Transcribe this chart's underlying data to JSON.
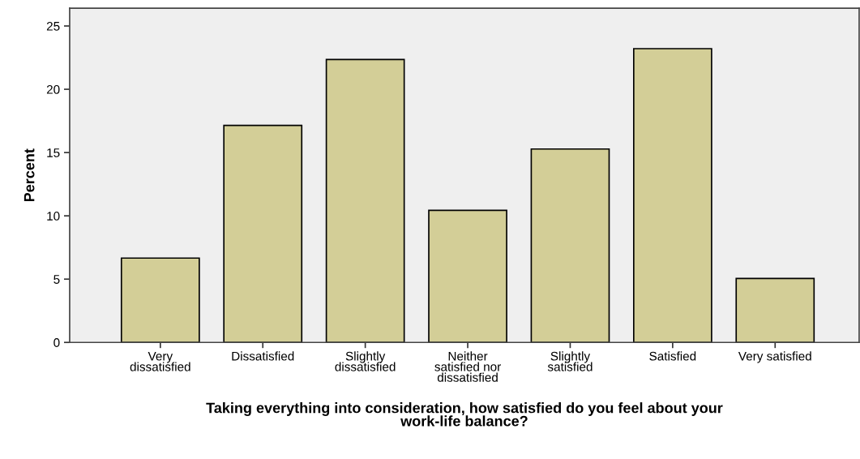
{
  "chart_data": {
    "type": "bar",
    "categories": [
      "Very\ndissatisfied",
      "Dissatisfied",
      "Slightly\ndissatisfied",
      "Neither\nsatisfied nor\ndissatisfied",
      "Slightly\nsatisfied",
      "Satisfied",
      "Very satisfied"
    ],
    "values": [
      6.66,
      17.15,
      22.35,
      10.43,
      15.28,
      23.21,
      5.05
    ],
    "color": "#d3ce97",
    "ylabel": "Percent",
    "xlabel": "Taking everything into consideration, how satisfied do you feel about your\nwork-life balance?",
    "ylim": [
      0,
      26.4
    ],
    "yticks": [
      0,
      5,
      10,
      15,
      20,
      25
    ],
    "grid": false,
    "legend": false
  }
}
